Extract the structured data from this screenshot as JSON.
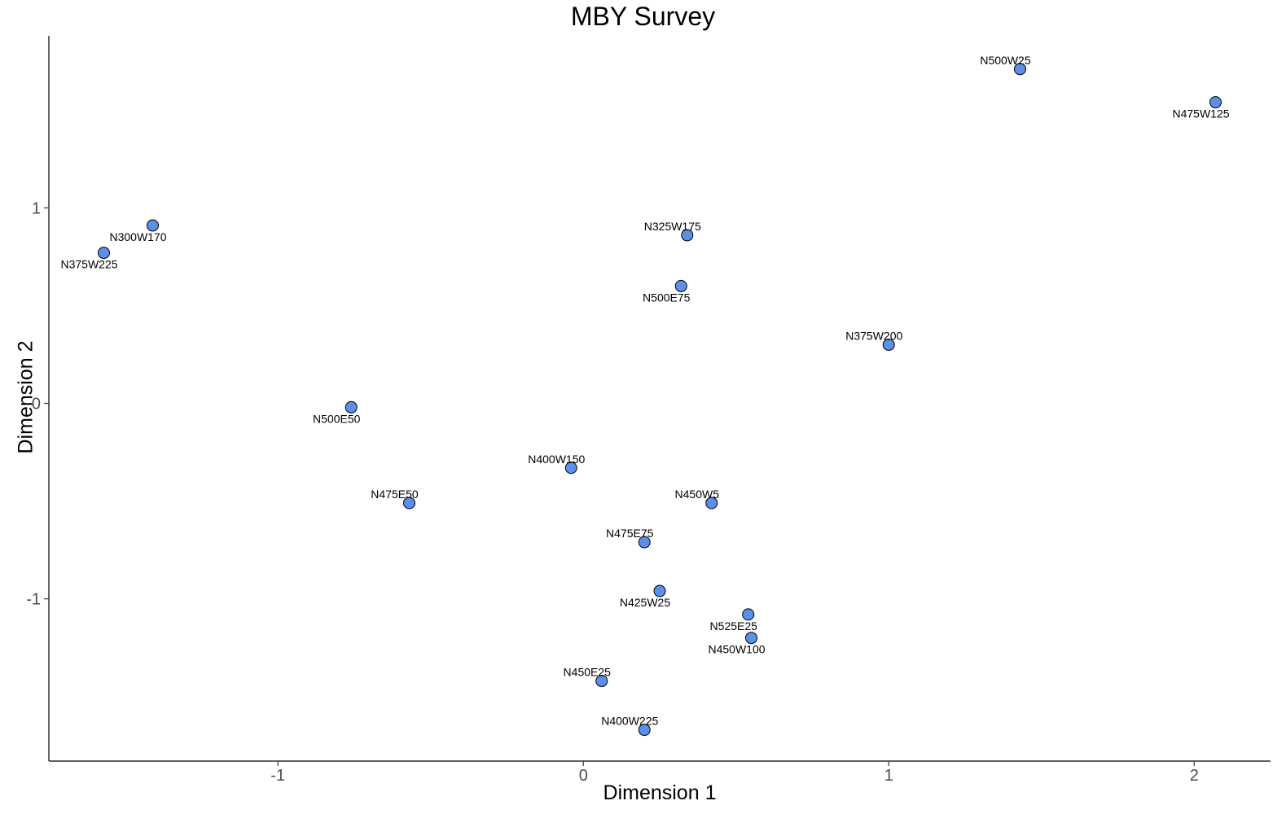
{
  "chart_data": {
    "type": "scatter",
    "title": "MBY Survey",
    "xlabel": "Dimension 1",
    "ylabel": "Dimension 2",
    "xlim": [
      -1.75,
      2.25
    ],
    "ylim": [
      -1.83,
      1.88
    ],
    "x_ticks": [
      -1,
      0,
      1,
      2
    ],
    "y_ticks": [
      -1,
      0,
      1
    ],
    "grid": false,
    "legend": "none",
    "point_color": "#5B8FE8",
    "point_outline": "#000000",
    "points": [
      {
        "label": "N500W25",
        "x": 1.43,
        "y": 1.71,
        "label_pos": "above"
      },
      {
        "label": "N475W125",
        "x": 2.07,
        "y": 1.54,
        "label_pos": "below"
      },
      {
        "label": "N300W170",
        "x": -1.41,
        "y": 0.91,
        "label_pos": "below"
      },
      {
        "label": "N375W225",
        "x": -1.57,
        "y": 0.77,
        "label_pos": "below"
      },
      {
        "label": "N325W175",
        "x": 0.34,
        "y": 0.86,
        "label_pos": "above"
      },
      {
        "label": "N500E75",
        "x": 0.32,
        "y": 0.6,
        "label_pos": "below"
      },
      {
        "label": "N375W200",
        "x": 1.0,
        "y": 0.3,
        "label_pos": "above"
      },
      {
        "label": "N500E50",
        "x": -0.76,
        "y": -0.02,
        "label_pos": "below"
      },
      {
        "label": "N400W150",
        "x": -0.04,
        "y": -0.33,
        "label_pos": "above"
      },
      {
        "label": "N475E50",
        "x": -0.57,
        "y": -0.51,
        "label_pos": "above"
      },
      {
        "label": "N450W5",
        "x": 0.42,
        "y": -0.51,
        "label_pos": "above"
      },
      {
        "label": "N475E75",
        "x": 0.2,
        "y": -0.71,
        "label_pos": "above"
      },
      {
        "label": "N425W25",
        "x": 0.25,
        "y": -0.96,
        "label_pos": "below"
      },
      {
        "label": "N525E25",
        "x": 0.54,
        "y": -1.08,
        "label_pos": "below"
      },
      {
        "label": "N450W100",
        "x": 0.55,
        "y": -1.2,
        "label_pos": "below"
      },
      {
        "label": "N450E25",
        "x": 0.06,
        "y": -1.42,
        "label_pos": "above"
      },
      {
        "label": "N400W225",
        "x": 0.2,
        "y": -1.67,
        "label_pos": "above"
      }
    ]
  }
}
